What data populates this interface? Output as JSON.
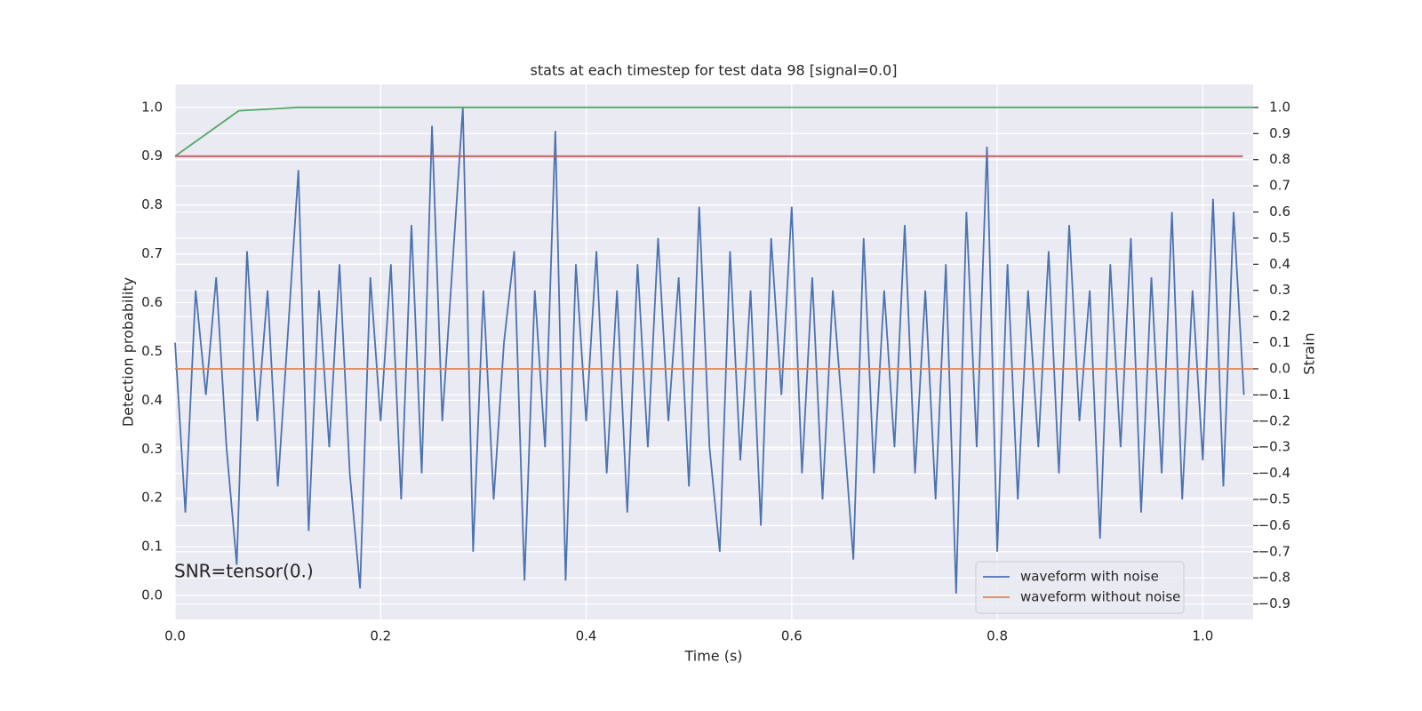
{
  "chart_data": {
    "type": "line",
    "title": "stats at each timestep for test data 98 [signal=0.0]",
    "xlabel": "Time (s)",
    "ylabel": "Detection probability",
    "y2label": "Strain",
    "annotation": "SNR=tensor(0.)",
    "xlim": [
      0,
      1.049
    ],
    "ylim": [
      -0.049,
      1.047
    ],
    "y2lim": [
      -0.959,
      1.088
    ],
    "xticks": [
      {
        "value": 0,
        "label": "0.0"
      },
      0.2,
      0.4,
      0.6,
      0.8,
      {
        "value": 1,
        "label": "1.0"
      }
    ],
    "yticks": [
      {
        "value": 0,
        "label": "0.0"
      },
      0.1,
      0.2,
      0.3,
      0.4,
      0.5,
      0.6,
      0.7,
      0.8,
      0.9,
      {
        "value": 1,
        "label": "1.0"
      }
    ],
    "y2ticks": [
      {
        "value": -0.9,
        "label": "−0.9"
      },
      {
        "value": -0.8,
        "label": "−0.8"
      },
      {
        "value": -0.7,
        "label": "−0.7"
      },
      {
        "value": -0.6,
        "label": "−0.6"
      },
      {
        "value": -0.5,
        "label": "−0.5"
      },
      {
        "value": -0.4,
        "label": "−0.4"
      },
      {
        "value": -0.3,
        "label": "−0.3"
      },
      {
        "value": -0.2,
        "label": "−0.2"
      },
      {
        "value": -0.1,
        "label": "−0.1"
      },
      {
        "value": 0,
        "label": "0.0"
      },
      0.1,
      0.2,
      0.3,
      0.4,
      0.5,
      0.6,
      0.7,
      0.8,
      0.9,
      {
        "value": 1,
        "label": "1.0"
      }
    ],
    "grid": true,
    "legend": "lower right",
    "series": [
      {
        "name": "waveform with noise",
        "color": "#4c72b0",
        "axis": "y2",
        "x": [
          0,
          0.01,
          0.02,
          0.03,
          0.04,
          0.05,
          0.06,
          0.07,
          0.08,
          0.09,
          0.1,
          0.11,
          0.12,
          0.13,
          0.14,
          0.15,
          0.16,
          0.17,
          0.18,
          0.19,
          0.2,
          0.21,
          0.22,
          0.23,
          0.24,
          0.25,
          0.26,
          0.27,
          0.28,
          0.29,
          0.3,
          0.31,
          0.32,
          0.33,
          0.34,
          0.35,
          0.36,
          0.37,
          0.38,
          0.39,
          0.4,
          0.41,
          0.42,
          0.43,
          0.44,
          0.45,
          0.46,
          0.47,
          0.48,
          0.49,
          0.5,
          0.51,
          0.52,
          0.53,
          0.54,
          0.55,
          0.56,
          0.57,
          0.58,
          0.59,
          0.6,
          0.61,
          0.62,
          0.63,
          0.64,
          0.65,
          0.66,
          0.67,
          0.68,
          0.69,
          0.7,
          0.71,
          0.72,
          0.73,
          0.74,
          0.75,
          0.76,
          0.77,
          0.78,
          0.79,
          0.8,
          0.81,
          0.82,
          0.83,
          0.84,
          0.85,
          0.86,
          0.87,
          0.88,
          0.89,
          0.9,
          0.91,
          0.92,
          0.93,
          0.94,
          0.95,
          0.96,
          0.97,
          0.98,
          0.99,
          1,
          1.01,
          1.02,
          1.03,
          1.04
        ],
        "values": [
          0.1,
          -0.55,
          0.3,
          -0.1,
          0.35,
          -0.3,
          -0.75,
          0.45,
          -0.2,
          0.3,
          -0.45,
          0.15,
          0.76,
          -0.62,
          0.3,
          -0.3,
          0.4,
          -0.4,
          -0.84,
          0.35,
          -0.2,
          0.4,
          -0.5,
          0.55,
          -0.4,
          0.93,
          -0.2,
          0.4,
          1.0,
          -0.7,
          0.3,
          -0.5,
          0.1,
          0.45,
          -0.81,
          0.3,
          -0.3,
          0.91,
          -0.81,
          0.4,
          -0.2,
          0.45,
          -0.4,
          0.3,
          -0.55,
          0.4,
          -0.3,
          0.5,
          -0.2,
          0.35,
          -0.45,
          0.62,
          -0.3,
          -0.7,
          0.45,
          -0.35,
          0.3,
          -0.6,
          0.5,
          -0.1,
          0.62,
          -0.4,
          0.35,
          -0.5,
          0.3,
          -0.2,
          -0.73,
          0.5,
          -0.4,
          0.3,
          -0.3,
          0.55,
          -0.4,
          0.3,
          -0.5,
          0.4,
          -0.86,
          0.6,
          -0.3,
          0.85,
          -0.7,
          0.4,
          -0.5,
          0.3,
          -0.3,
          0.45,
          -0.4,
          0.55,
          -0.2,
          0.3,
          -0.65,
          0.4,
          -0.3,
          0.5,
          -0.55,
          0.35,
          -0.4,
          0.6,
          -0.5,
          0.3,
          -0.35,
          0.65,
          -0.45,
          0.6,
          -0.1
        ]
      },
      {
        "name": "waveform without noise",
        "color": "#dd8452",
        "axis": "y2",
        "x": [
          0,
          1.049
        ],
        "values": [
          0,
          0
        ]
      },
      {
        "color": "#55a868",
        "x": [
          0,
          0.062,
          0.12,
          1.049
        ],
        "values": [
          0.9,
          0.993,
          1.0,
          1.0
        ]
      },
      {
        "color": "#c44e52",
        "x": [
          0,
          1.039
        ],
        "values": [
          0.9,
          0.9
        ]
      }
    ]
  }
}
